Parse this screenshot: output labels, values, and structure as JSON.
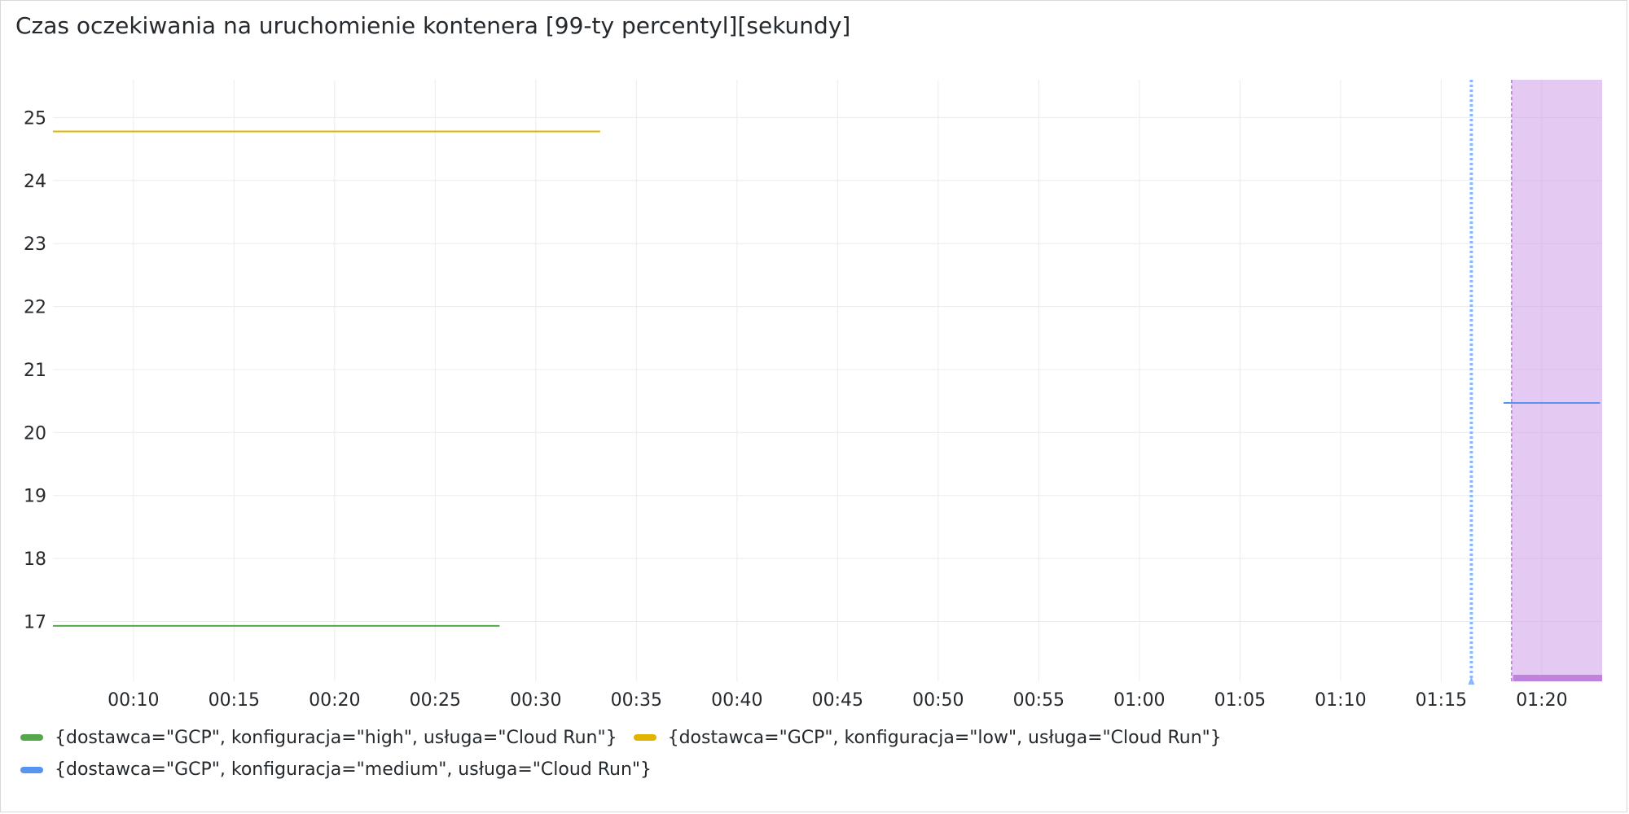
{
  "panel": {
    "title": "Czas oczekiwania na uruchomienie kontenera [99-ty percentyl][sekundy]"
  },
  "chart_data": {
    "type": "line",
    "title": "Czas oczekiwania na uruchomienie kontenera [99-ty percentyl][sekundy]",
    "xlabel": "",
    "ylabel": "",
    "x_ticks": [
      "00:10",
      "00:15",
      "00:20",
      "00:25",
      "00:30",
      "00:35",
      "00:40",
      "00:45",
      "00:50",
      "00:55",
      "01:00",
      "01:05",
      "01:10",
      "01:15",
      "01:20"
    ],
    "x_tick_minutes": [
      10,
      15,
      20,
      25,
      30,
      35,
      40,
      45,
      50,
      55,
      60,
      65,
      70,
      75,
      80
    ],
    "xlim_minutes": [
      6.0,
      83.0
    ],
    "y_ticks": [
      17,
      18,
      19,
      20,
      21,
      22,
      23,
      24,
      25
    ],
    "ylim": [
      16.05,
      25.6
    ],
    "grid": true,
    "legend_position": "bottom",
    "series": [
      {
        "name": "{dostawca=\"GCP\", konfiguracja=\"high\", usługa=\"Cloud Run\"}",
        "color": "#56a64b",
        "x_minutes": [
          6.0,
          28.2
        ],
        "values": [
          16.93,
          16.93
        ]
      },
      {
        "name": "{dostawca=\"GCP\", konfiguracja=\"low\", usługa=\"Cloud Run\"}",
        "color": "#e0b400",
        "x_minutes": [
          6.0,
          33.2
        ],
        "values": [
          24.78,
          24.78
        ]
      },
      {
        "name": "{dostawca=\"GCP\", konfiguracja=\"medium\", usługa=\"Cloud Run\"}",
        "color": "#5794f2",
        "x_minutes": [
          78.1,
          82.9
        ],
        "values": [
          20.47,
          20.47
        ]
      }
    ],
    "annotations": [
      {
        "type": "marker",
        "x_minutes": 76.5,
        "color": "#8ab8ff",
        "style": "dotted"
      },
      {
        "type": "region",
        "x_start_minutes": 78.5,
        "x_end_minutes": 83.0,
        "color": "#ca95e5"
      }
    ]
  }
}
